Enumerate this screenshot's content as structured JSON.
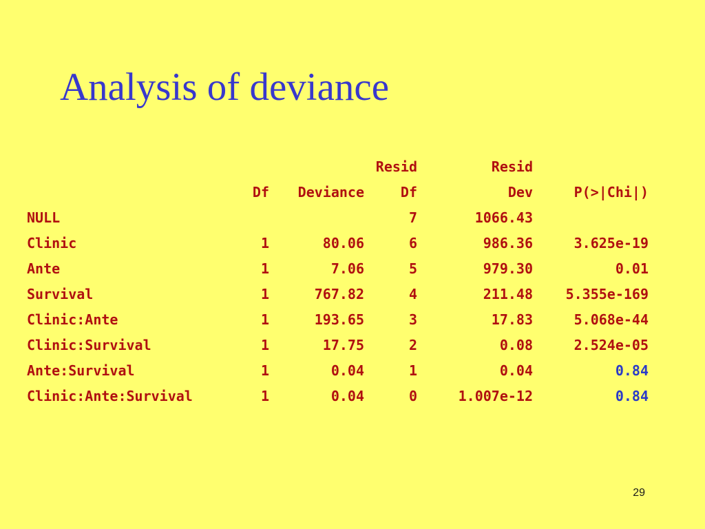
{
  "title": "Analysis of deviance",
  "page_number": "29",
  "table": {
    "header_top": [
      "",
      "",
      "",
      "Resid",
      "Resid",
      ""
    ],
    "header_bottom": [
      "",
      "Df",
      "Deviance",
      "Df",
      "Dev",
      "P(>|Chi|)"
    ],
    "rows": [
      [
        "NULL",
        "",
        "",
        "7",
        "1066.43",
        ""
      ],
      [
        "Clinic",
        "1",
        "80.06",
        "6",
        "986.36",
        "3.625e-19"
      ],
      [
        "Ante",
        "1",
        "7.06",
        "5",
        "979.30",
        "0.01"
      ],
      [
        "Survival",
        "1",
        "767.82",
        "4",
        "211.48",
        "5.355e-169"
      ],
      [
        "Clinic:Ante",
        "1",
        "193.65",
        "3",
        "17.83",
        "5.068e-44"
      ],
      [
        "Clinic:Survival",
        "1",
        "17.75",
        "2",
        "0.08",
        "2.524e-05"
      ],
      [
        "Ante:Survival",
        "1",
        "0.04",
        "1",
        "0.04",
        "0.84"
      ],
      [
        "Clinic:Ante:Survival",
        "1",
        "0.04",
        "0",
        "1.007e-12",
        "0.84"
      ]
    ],
    "highlighted_p_rows": [
      6,
      7
    ]
  },
  "colors": {
    "background": "#ffff6f",
    "title": "#3838cc",
    "table_text": "#b01010",
    "highlight": "#2a3ac8"
  }
}
